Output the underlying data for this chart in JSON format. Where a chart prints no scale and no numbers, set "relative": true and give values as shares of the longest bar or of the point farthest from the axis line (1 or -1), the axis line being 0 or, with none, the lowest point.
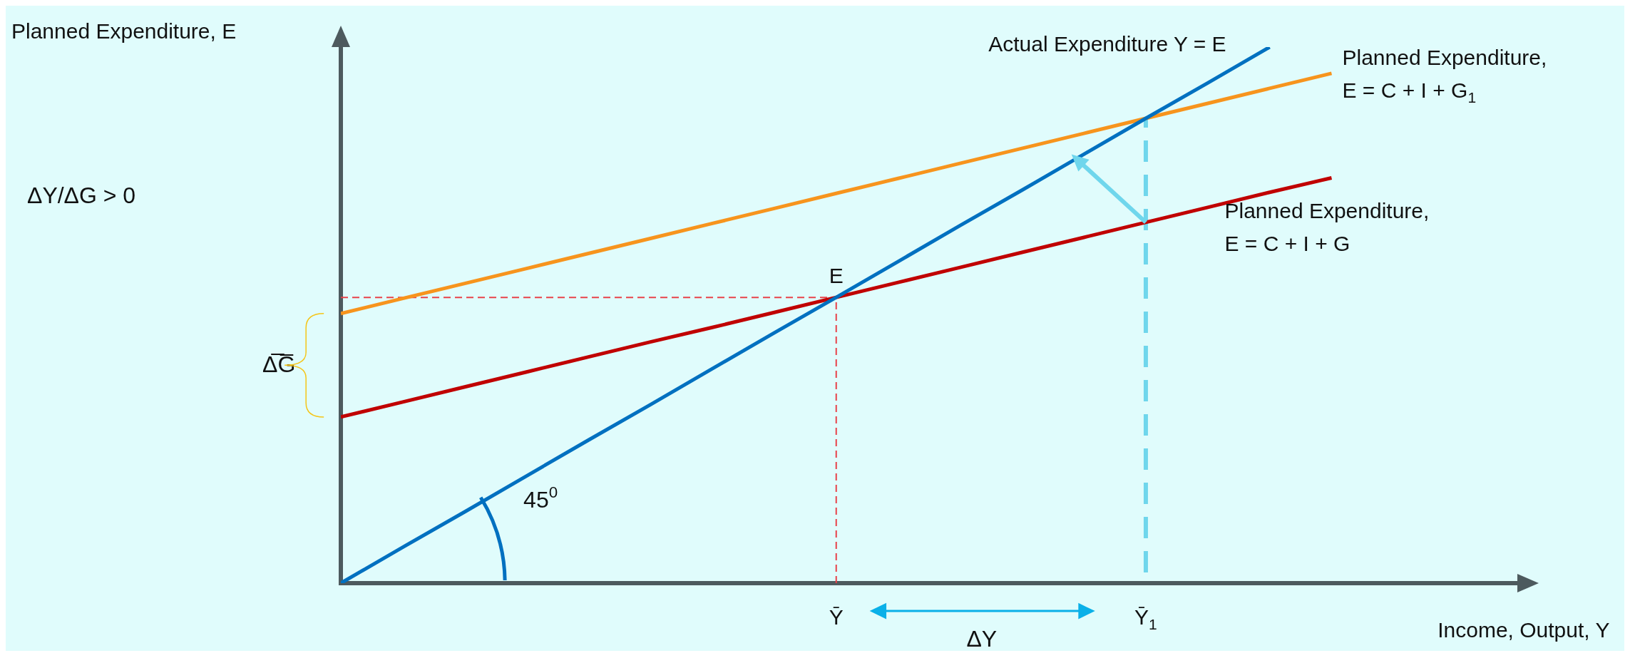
{
  "chart_data": {
    "type": "line",
    "relative": true,
    "xlabel": "Income, Output, Y",
    "ylabel": "Planned Expenditure, E",
    "categories": [
      null,
      null,
      null,
      null,
      null,
      null,
      null,
      null,
      "Ȳ",
      null,
      null,
      null,
      null,
      "Ȳ$_{1}$",
      null,
      null,
      null,
      null,
      null,
      null
    ],
    "legend": false,
    "marker": "none",
    "series": [
      {
        "name": "Actual Expenditure Y = E",
        "color": "#0070c0",
        "line_style": "solid",
        "values": [
          0,
          0.067,
          0.133,
          0.2,
          0.267,
          0.333,
          0.4,
          0.467,
          0.533,
          0.6,
          0.667,
          0.733,
          0.8,
          0.867,
          0.933,
          1,
          null,
          null,
          null,
          null
        ]
      },
      {
        "name": "Planned Expenditure, E = C + I + G",
        "color": "#c00000",
        "line_style": "solid",
        "values": [
          0.31,
          0.338,
          0.366,
          0.394,
          0.422,
          0.45,
          0.477,
          0.505,
          0.533,
          0.561,
          0.589,
          0.617,
          0.645,
          0.673,
          0.701,
          0.729,
          0.756,
          null,
          null,
          null
        ]
      },
      {
        "name": "Planned Expenditure, E = C + I + G$_{1}$",
        "color": "#f7941d",
        "line_style": "solid",
        "values": [
          0.503,
          0.531,
          0.559,
          0.587,
          0.615,
          0.643,
          0.671,
          0.699,
          0.727,
          0.755,
          0.783,
          0.811,
          0.839,
          0.867,
          0.895,
          0.923,
          0.951,
          null,
          null,
          null
        ]
      },
      {
        "color": "#e8424a",
        "line_style": "dashed",
        "values": [
          0.533,
          0.533,
          0.533,
          0.533,
          0.533,
          0.533,
          0.533,
          0.533,
          0.533,
          null,
          null,
          null,
          null,
          null,
          null,
          null,
          null,
          null,
          null,
          null
        ]
      },
      {
        "color": "#e8424a",
        "line_style": "dashed",
        "x": [
          "Ȳ",
          "Ȳ"
        ],
        "values": [
          0,
          0.533
        ]
      },
      {
        "color": "#6fd6ec",
        "line_style": "dashed",
        "x": [
          "Ȳ$_{1}$",
          "Ȳ$_{1}$"
        ],
        "values": [
          0.02,
          0.867
        ]
      }
    ],
    "annotations": [
      {
        "text": "E",
        "x": "Ȳ",
        "y": 0.533
      },
      "45$^{0}$",
      "ΔY",
      "ΔY/ΔG > 0",
      "Δ̅G̅"
    ]
  }
}
